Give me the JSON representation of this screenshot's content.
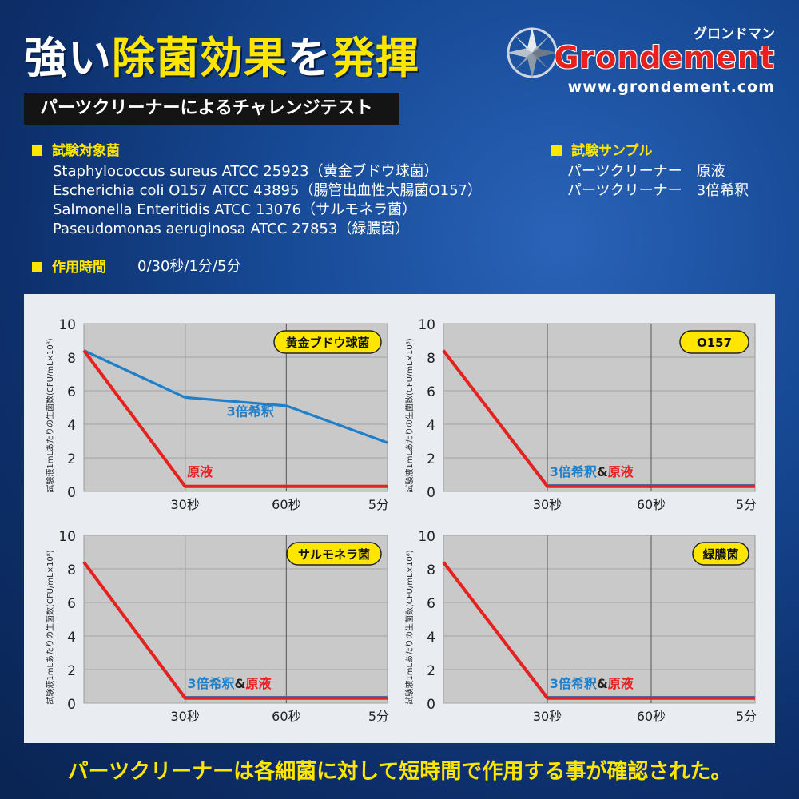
{
  "header": {
    "title_part1": "強い",
    "title_highlight": "除菌効果",
    "title_part2": "を",
    "title_part3": "発揮",
    "subtitle": "パーツクリーナーによるチャレンジテスト"
  },
  "logo": {
    "kana": "グロンドマン",
    "brand": "Grondement",
    "url": "www.grondement.com"
  },
  "sections": {
    "bacteria_head": "試験対象菌",
    "bacteria": [
      "Staphylococcus sureus ATCC 25923（黄金ブドウ球菌）",
      "Escherichia coli O157 ATCC 43895（腸管出血性大腸菌O157）",
      "Salmonella Enteritidis ATCC 13076（サルモネラ菌）",
      "Paseudomonas aeruginosa ATCC 27853（緑膿菌）"
    ],
    "samples_head": "試験サンプル",
    "samples": [
      "パーツクリーナー　原液",
      "パーツクリーナー　3倍希釈"
    ],
    "time_head": "作用時間",
    "time_value": "0/30秒/1分/5分"
  },
  "footer": "パーツクリーナーは各細菌に対して短時間で作用する事が確認された。",
  "colors": {
    "accent_yellow": "#ffe600",
    "undiluted_red": "#e8201e",
    "diluted_blue": "#1f7fc9",
    "badge_yellow": "#ffe600"
  },
  "chart_data": [
    {
      "type": "line",
      "badge": "黄金ブドウ球菌",
      "ylabel": "試験液1mLあたりの生菌数(CFU/mL×10⁸)",
      "yticks": [
        "0",
        "2",
        "4",
        "6",
        "8",
        "10"
      ],
      "ylim": [
        0,
        10
      ],
      "categories": [
        "0",
        "30秒",
        "60秒",
        "5分"
      ],
      "xtick_labels": [
        "30秒",
        "60秒",
        "5分"
      ],
      "grid": true,
      "series": [
        {
          "name": "3倍希釈",
          "color": "#1f7fc9",
          "values": [
            8.4,
            5.6,
            5.1,
            2.9
          ]
        },
        {
          "name": "原液",
          "color": "#e8201e",
          "values": [
            8.4,
            0.3,
            0.3,
            0.3
          ]
        }
      ],
      "labels": [
        {
          "text": "3倍希釈",
          "color": "#1f7fc9"
        },
        {
          "text": "原液",
          "color": "#e8201e"
        }
      ]
    },
    {
      "type": "line",
      "badge": "O157",
      "ylabel": "試験液1mLあたりの生菌数(CFU/mL×10⁸)",
      "yticks": [
        "0",
        "2",
        "4",
        "6",
        "8",
        "10"
      ],
      "ylim": [
        0,
        10
      ],
      "categories": [
        "0",
        "30秒",
        "60秒",
        "5分"
      ],
      "xtick_labels": [
        "30秒",
        "60秒",
        "5分"
      ],
      "grid": true,
      "series": [
        {
          "name": "3倍希釈",
          "color": "#1f7fc9",
          "values": [
            8.4,
            0.35,
            0.35,
            0.35
          ]
        },
        {
          "name": "原液",
          "color": "#e8201e",
          "values": [
            8.4,
            0.3,
            0.3,
            0.3
          ]
        }
      ],
      "labels": [
        {
          "text": "3倍希釈",
          "color": "#1f7fc9"
        },
        {
          "text": "&",
          "color": "#222222"
        },
        {
          "text": "原液",
          "color": "#e8201e"
        }
      ]
    },
    {
      "type": "line",
      "badge": "サルモネラ菌",
      "ylabel": "試験液1mLあたりの生菌数(CFU/mL×10⁸)",
      "yticks": [
        "0",
        "2",
        "4",
        "6",
        "8",
        "10"
      ],
      "ylim": [
        0,
        10
      ],
      "categories": [
        "0",
        "30秒",
        "60秒",
        "5分"
      ],
      "xtick_labels": [
        "30秒",
        "60秒",
        "5分"
      ],
      "grid": true,
      "series": [
        {
          "name": "3倍希釈",
          "color": "#1f7fc9",
          "values": [
            8.4,
            0.35,
            0.35,
            0.35
          ]
        },
        {
          "name": "原液",
          "color": "#e8201e",
          "values": [
            8.4,
            0.3,
            0.3,
            0.3
          ]
        }
      ],
      "labels": [
        {
          "text": "3倍希釈",
          "color": "#1f7fc9"
        },
        {
          "text": "&",
          "color": "#222222"
        },
        {
          "text": "原液",
          "color": "#e8201e"
        }
      ]
    },
    {
      "type": "line",
      "badge": "緑膿菌",
      "ylabel": "試験液1mLあたりの生菌数(CFU/mL×10⁸)",
      "yticks": [
        "0",
        "2",
        "4",
        "6",
        "8",
        "10"
      ],
      "ylim": [
        0,
        10
      ],
      "categories": [
        "0",
        "30秒",
        "60秒",
        "5分"
      ],
      "xtick_labels": [
        "30秒",
        "60秒",
        "5分"
      ],
      "grid": true,
      "series": [
        {
          "name": "3倍希釈",
          "color": "#1f7fc9",
          "values": [
            8.4,
            0.35,
            0.35,
            0.35
          ]
        },
        {
          "name": "原液",
          "color": "#e8201e",
          "values": [
            8.4,
            0.3,
            0.3,
            0.3
          ]
        }
      ],
      "labels": [
        {
          "text": "3倍希釈",
          "color": "#1f7fc9"
        },
        {
          "text": "&",
          "color": "#222222"
        },
        {
          "text": "原液",
          "color": "#e8201e"
        }
      ]
    }
  ]
}
